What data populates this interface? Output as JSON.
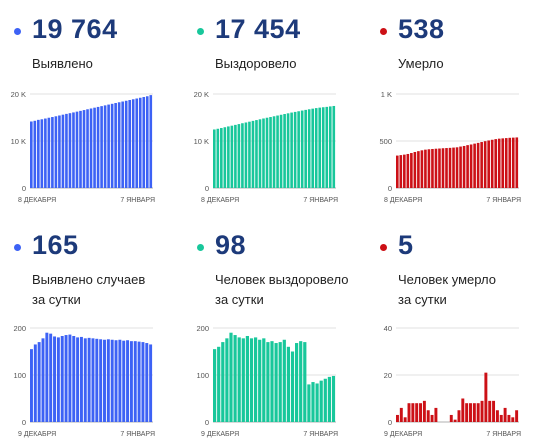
{
  "panels": [
    {
      "value": "19 764",
      "label_lines": [
        "Выявлено"
      ],
      "color": "#3d62f5"
    },
    {
      "value": "17 454",
      "label_lines": [
        "Выздоровело"
      ],
      "color": "#18c79b"
    },
    {
      "value": "538",
      "label_lines": [
        "Умерло"
      ],
      "color": "#cc1016"
    },
    {
      "value": "165",
      "label_lines": [
        "Выявлено случаев",
        "за сутки"
      ],
      "color": "#3d62f5"
    },
    {
      "value": "98",
      "label_lines": [
        "Человек выздоровело",
        "за сутки"
      ],
      "color": "#18c79b"
    },
    {
      "value": "5",
      "label_lines": [
        "Человек умерло",
        "за сутки"
      ],
      "color": "#cc1016"
    }
  ],
  "chart_data": [
    {
      "type": "bar",
      "x_start_label": "8 ДЕКАБРЯ",
      "x_end_label": "7 ЯНВАРЯ",
      "ylim": [
        0,
        20000
      ],
      "yticks": [
        0,
        10000,
        20000
      ],
      "ytick_labels": [
        "0",
        "10 K",
        "20 K"
      ],
      "color": "#3d62f5",
      "values": [
        14150,
        14300,
        14500,
        14620,
        14780,
        14950,
        15100,
        15260,
        15430,
        15600,
        15770,
        15920,
        16080,
        16250,
        16410,
        16580,
        16750,
        16920,
        17090,
        17250,
        17420,
        17580,
        17750,
        17910,
        18080,
        18240,
        18400,
        18560,
        18720,
        18880,
        19040,
        19200,
        19360,
        19520,
        19764
      ]
    },
    {
      "type": "bar",
      "x_start_label": "8 ДЕКАБРЯ",
      "x_end_label": "7 ЯНВАРЯ",
      "ylim": [
        0,
        20000
      ],
      "yticks": [
        0,
        10000,
        20000
      ],
      "ytick_labels": [
        "0",
        "10 K",
        "20 K"
      ],
      "color": "#18c79b",
      "values": [
        12450,
        12600,
        12760,
        12930,
        13100,
        13260,
        13430,
        13600,
        13780,
        13940,
        14110,
        14280,
        14450,
        14620,
        14790,
        14950,
        15100,
        15260,
        15420,
        15580,
        15740,
        15890,
        16050,
        16190,
        16330,
        16480,
        16620,
        16750,
        16880,
        17000,
        17100,
        17180,
        17260,
        17360,
        17454
      ]
    },
    {
      "type": "bar",
      "x_start_label": "8 ДЕКАБРЯ",
      "x_end_label": "7 ЯНВАРЯ",
      "ylim": [
        0,
        1000
      ],
      "yticks": [
        0,
        500,
        1000
      ],
      "ytick_labels": [
        "0",
        "500",
        "1 K"
      ],
      "color": "#cc1016",
      "values": [
        345,
        350,
        355,
        362,
        372,
        383,
        392,
        401,
        408,
        412,
        415,
        418,
        420,
        423,
        425,
        427,
        430,
        433,
        441,
        447,
        456,
        463,
        472,
        480,
        489,
        498,
        506,
        513,
        520,
        525,
        528,
        531,
        534,
        536,
        538
      ]
    },
    {
      "type": "bar",
      "x_start_label": "9 ДЕКАБРЯ",
      "x_end_label": "7 ЯНВАРЯ",
      "ylim": [
        0,
        200
      ],
      "yticks": [
        0,
        100,
        200
      ],
      "ytick_labels": [
        "0",
        "100",
        "200"
      ],
      "color": "#3d62f5",
      "values": [
        155,
        165,
        170,
        178,
        190,
        188,
        182,
        180,
        183,
        185,
        186,
        183,
        180,
        181,
        178,
        179,
        178,
        177,
        176,
        175,
        176,
        175,
        174,
        175,
        173,
        174,
        172,
        172,
        171,
        170,
        168,
        165
      ]
    },
    {
      "type": "bar",
      "x_start_label": "9 ДЕКАБРЯ",
      "x_end_label": "7 ЯНВАРЯ",
      "ylim": [
        0,
        200
      ],
      "yticks": [
        0,
        100,
        200
      ],
      "ytick_labels": [
        "0",
        "100",
        "200"
      ],
      "color": "#18c79b",
      "values": [
        155,
        160,
        170,
        178,
        190,
        185,
        180,
        178,
        183,
        178,
        180,
        175,
        178,
        170,
        172,
        168,
        170,
        175,
        160,
        150,
        168,
        172,
        170,
        80,
        85,
        82,
        88,
        92,
        96,
        98
      ]
    },
    {
      "type": "bar",
      "x_start_label": "9 ДЕКАБРЯ",
      "x_end_label": "7 ЯНВАРЯ",
      "ylim": [
        0,
        40
      ],
      "yticks": [
        0,
        20,
        40
      ],
      "ytick_labels": [
        "0",
        "20",
        "40"
      ],
      "color": "#cc1016",
      "values": [
        3,
        6,
        2,
        8,
        8,
        8,
        8,
        9,
        5,
        3,
        6,
        0,
        0,
        0,
        3,
        1,
        5,
        10,
        8,
        8,
        8,
        8,
        9,
        21,
        9,
        9,
        5,
        3,
        6,
        3,
        2,
        5
      ]
    }
  ]
}
